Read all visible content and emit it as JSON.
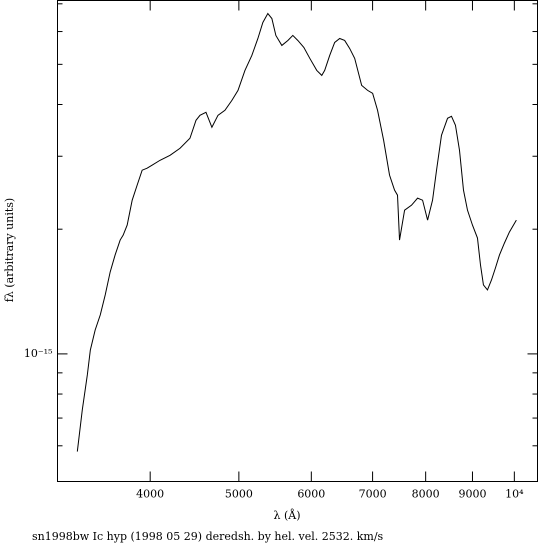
{
  "chart_data": {
    "type": "line",
    "caption": "sn1998bw Ic hyp (1998 05 29) deredsh. by hel. vel.  2532. km/s",
    "x_label": "λ (Å)",
    "y_label": "fλ (arbitrary units)",
    "xscale": "log",
    "yscale": "log",
    "xlim": [
      3168,
      10600
    ],
    "ylim": [
      4.92e-16,
      7.13e-15
    ],
    "xticks": [
      4000,
      5000,
      6000,
      7000,
      8000,
      9000,
      {
        "value": 10000,
        "label": "10⁴"
      }
    ],
    "yticks": [
      {
        "value": 1e-15,
        "label": "10⁻¹⁵"
      }
    ],
    "y_minor_ticks": [
      6e-16,
      7e-16,
      8e-16,
      9e-16,
      2e-15,
      3e-15,
      4e-15,
      5e-15,
      6e-15,
      7e-15
    ],
    "series": [
      {
        "color": "#000000",
        "x": [
          3330,
          3372,
          3415,
          3441,
          3483,
          3528,
          3572,
          3617,
          3662,
          3709,
          3737,
          3775,
          3823,
          3871,
          3920,
          3969,
          4019,
          4101,
          4205,
          4312,
          4421,
          4489,
          4534,
          4603,
          4672,
          4744,
          4828,
          4913,
          4989,
          5077,
          5166,
          5245,
          5311,
          5378,
          5433,
          5488,
          5571,
          5656,
          5727,
          5800,
          5888,
          5978,
          6083,
          6160,
          6205,
          6284,
          6363,
          6444,
          6525,
          6608,
          6692,
          6810,
          6913,
          7001,
          7088,
          7197,
          7305,
          7398,
          7453,
          7491,
          7587,
          7721,
          7839,
          7938,
          8039,
          8140,
          8222,
          8325,
          8453,
          8537,
          8623,
          8711,
          8799,
          8888,
          9000,
          9114,
          9184,
          9252,
          9346,
          9441,
          9535,
          9632,
          9753,
          9876,
          10051
        ],
        "values": [
          5.81e-16,
          7.33e-16,
          8.9e-16,
          1.022e-15,
          1.142e-15,
          1.242e-15,
          1.387e-15,
          1.577e-15,
          1.732e-15,
          1.883e-15,
          1.935e-15,
          2.046e-15,
          2.35e-15,
          2.555e-15,
          2.776e-15,
          2.807e-15,
          2.854e-15,
          2.934e-15,
          3.016e-15,
          3.136e-15,
          3.315e-15,
          3.664e-15,
          3.767e-15,
          3.83e-15,
          3.524e-15,
          3.767e-15,
          3.873e-15,
          4.093e-15,
          4.326e-15,
          4.834e-15,
          5.254e-15,
          5.773e-15,
          6.31e-15,
          6.632e-15,
          6.451e-15,
          5.871e-15,
          5.554e-15,
          5.71e-15,
          5.871e-15,
          5.71e-15,
          5.493e-15,
          5.167e-15,
          4.834e-15,
          4.702e-15,
          4.834e-15,
          5.254e-15,
          5.647e-15,
          5.773e-15,
          5.71e-15,
          5.462e-15,
          5.167e-15,
          4.448e-15,
          4.326e-15,
          4.256e-15,
          3.873e-15,
          3.279e-15,
          2.701e-15,
          2.485e-15,
          2.416e-15,
          1.883e-15,
          2.223e-15,
          2.286e-15,
          2.377e-15,
          2.35e-15,
          2.103e-15,
          2.35e-15,
          2.776e-15,
          3.371e-15,
          3.705e-15,
          3.746e-15,
          3.564e-15,
          3.101e-15,
          2.485e-15,
          2.223e-15,
          2.046e-15,
          1.904e-15,
          1.638e-15,
          1.467e-15,
          1.427e-15,
          1.508e-15,
          1.612e-15,
          1.732e-15,
          1.851e-15,
          1.968e-15,
          2.103e-15
        ]
      }
    ]
  }
}
